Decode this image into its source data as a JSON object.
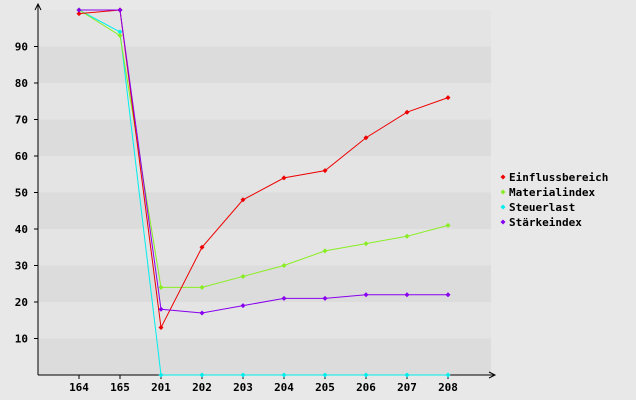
{
  "chart_data": {
    "type": "line",
    "categories": [
      "164",
      "165",
      "201",
      "202",
      "203",
      "204",
      "205",
      "206",
      "207",
      "208"
    ],
    "y_ticks": [
      10,
      20,
      30,
      40,
      50,
      60,
      70,
      80,
      90
    ],
    "ylim": [
      0,
      100
    ],
    "grid": "horizontal bands",
    "legend_position": "right",
    "series": [
      {
        "name": "Einflussbereich",
        "color": "#ee0000",
        "values": [
          99,
          100,
          13,
          35,
          48,
          54,
          56,
          65,
          72,
          76
        ]
      },
      {
        "name": "Materialindex",
        "color": "#88ee22",
        "values": [
          100,
          93,
          24,
          24,
          27,
          30,
          34,
          36,
          38,
          41
        ]
      },
      {
        "name": "Steuerlast",
        "color": "#00eeee",
        "values": [
          100,
          94,
          0,
          0,
          0,
          0,
          0,
          0,
          0,
          0
        ]
      },
      {
        "name": "Stärkeindex",
        "color": "#8800ee",
        "values": [
          100,
          100,
          18,
          17,
          19,
          21,
          21,
          22,
          22,
          22
        ]
      }
    ]
  }
}
